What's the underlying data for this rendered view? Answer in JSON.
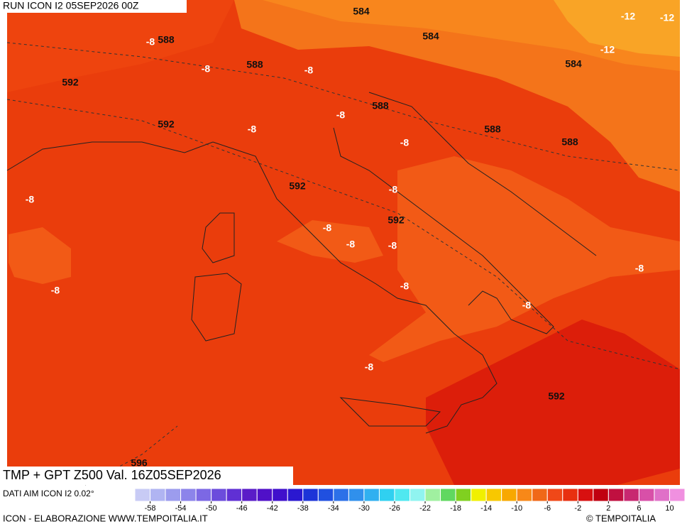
{
  "header": {
    "run": "RUN ICON I2 05SEP2026 00Z",
    "title": "TMP + GPT Z500 Val. 16Z05SEP2026",
    "source": "DATI AIM ICON I2 0.02°",
    "credit": "ICON - ELABORAZIONE WWW.TEMPOITALIA.IT",
    "brand": "© TEMPOITALIA"
  },
  "contour_labels": [
    "584",
    "584",
    "584",
    "-12",
    "-12",
    "-12",
    "588",
    "588",
    "588",
    "588",
    "588",
    "-8",
    "-8",
    "-8",
    "-8",
    "-8",
    "-8",
    "-8",
    "-8",
    "-8",
    "-8",
    "-8",
    "-8",
    "-8",
    "-8",
    "-8",
    "-8",
    "592",
    "592",
    "592",
    "592",
    "592",
    "596"
  ],
  "colorbar": {
    "lim": [
      -60,
      12
    ],
    "step": 2,
    "colors": [
      "#c8cbf5",
      "#b0b4f2",
      "#9c9cee",
      "#8c84ea",
      "#7c68e4",
      "#6c4cdc",
      "#6030d4",
      "#5a1cc8",
      "#5010c8",
      "#4010cc",
      "#2a18d0",
      "#1c34d8",
      "#2050e0",
      "#2c70e8",
      "#3090ec",
      "#30b0f0",
      "#30d0f0",
      "#50e8f0",
      "#90f4f0",
      "#a0f0a0",
      "#60d860",
      "#80d020",
      "#f0f000",
      "#f8c800",
      "#f8a800",
      "#f88818",
      "#f06818",
      "#f04818",
      "#e83010",
      "#d81010",
      "#c00010",
      "#c01040",
      "#c82870",
      "#d850a8",
      "#e070c8",
      "#f090e0"
    ],
    "ticks": [
      -58,
      -54,
      -50,
      -46,
      -42,
      -38,
      -34,
      -30,
      -26,
      -22,
      -18,
      -14,
      -10,
      -6,
      -2,
      2,
      6,
      10
    ]
  }
}
